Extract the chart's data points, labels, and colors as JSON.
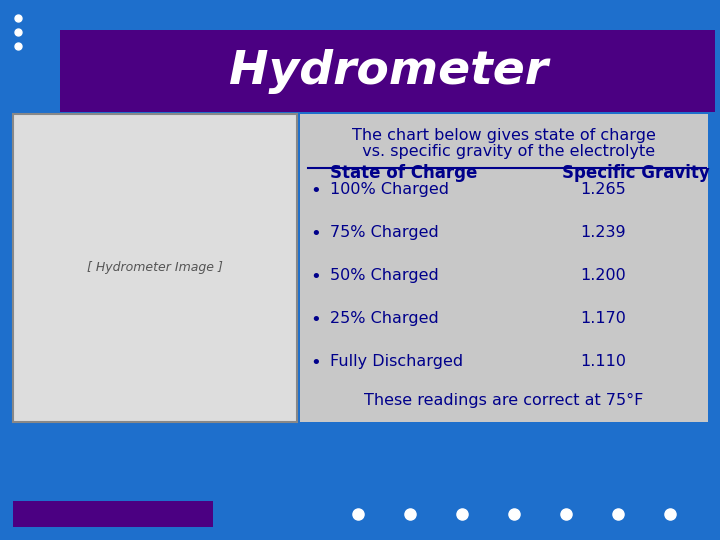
{
  "title": "Hydrometer",
  "title_color": "#FFFFFF",
  "title_bg_color": "#4B0082",
  "main_bg_color": "#1E6FCC",
  "content_bg_color": "#C8C8C8",
  "subtitle_line1": "The chart below gives state of charge",
  "subtitle_line2": "  vs. specific gravity of the electrolyte",
  "col1_header": "State of Charge",
  "col2_header": "Specific Gravity",
  "header_color": "#00008B",
  "rows": [
    {
      "charge": "100% Charged",
      "gravity": "1.265"
    },
    {
      "charge": "75% Charged",
      "gravity": "1.239"
    },
    {
      "charge": "50% Charged",
      "gravity": "1.200"
    },
    {
      "charge": "25% Charged",
      "gravity": "1.170"
    },
    {
      "charge": "Fully Discharged",
      "gravity": "1.110"
    }
  ],
  "footer_text": "These readings are correct at 75°F",
  "row_text_color": "#00008B",
  "bullet_color": "#00008B",
  "dots_color": "#FFFFFF",
  "bottom_bar_color": "#4B0082",
  "img_bg_color": "#DDDDDD",
  "img_border_color": "#888888"
}
